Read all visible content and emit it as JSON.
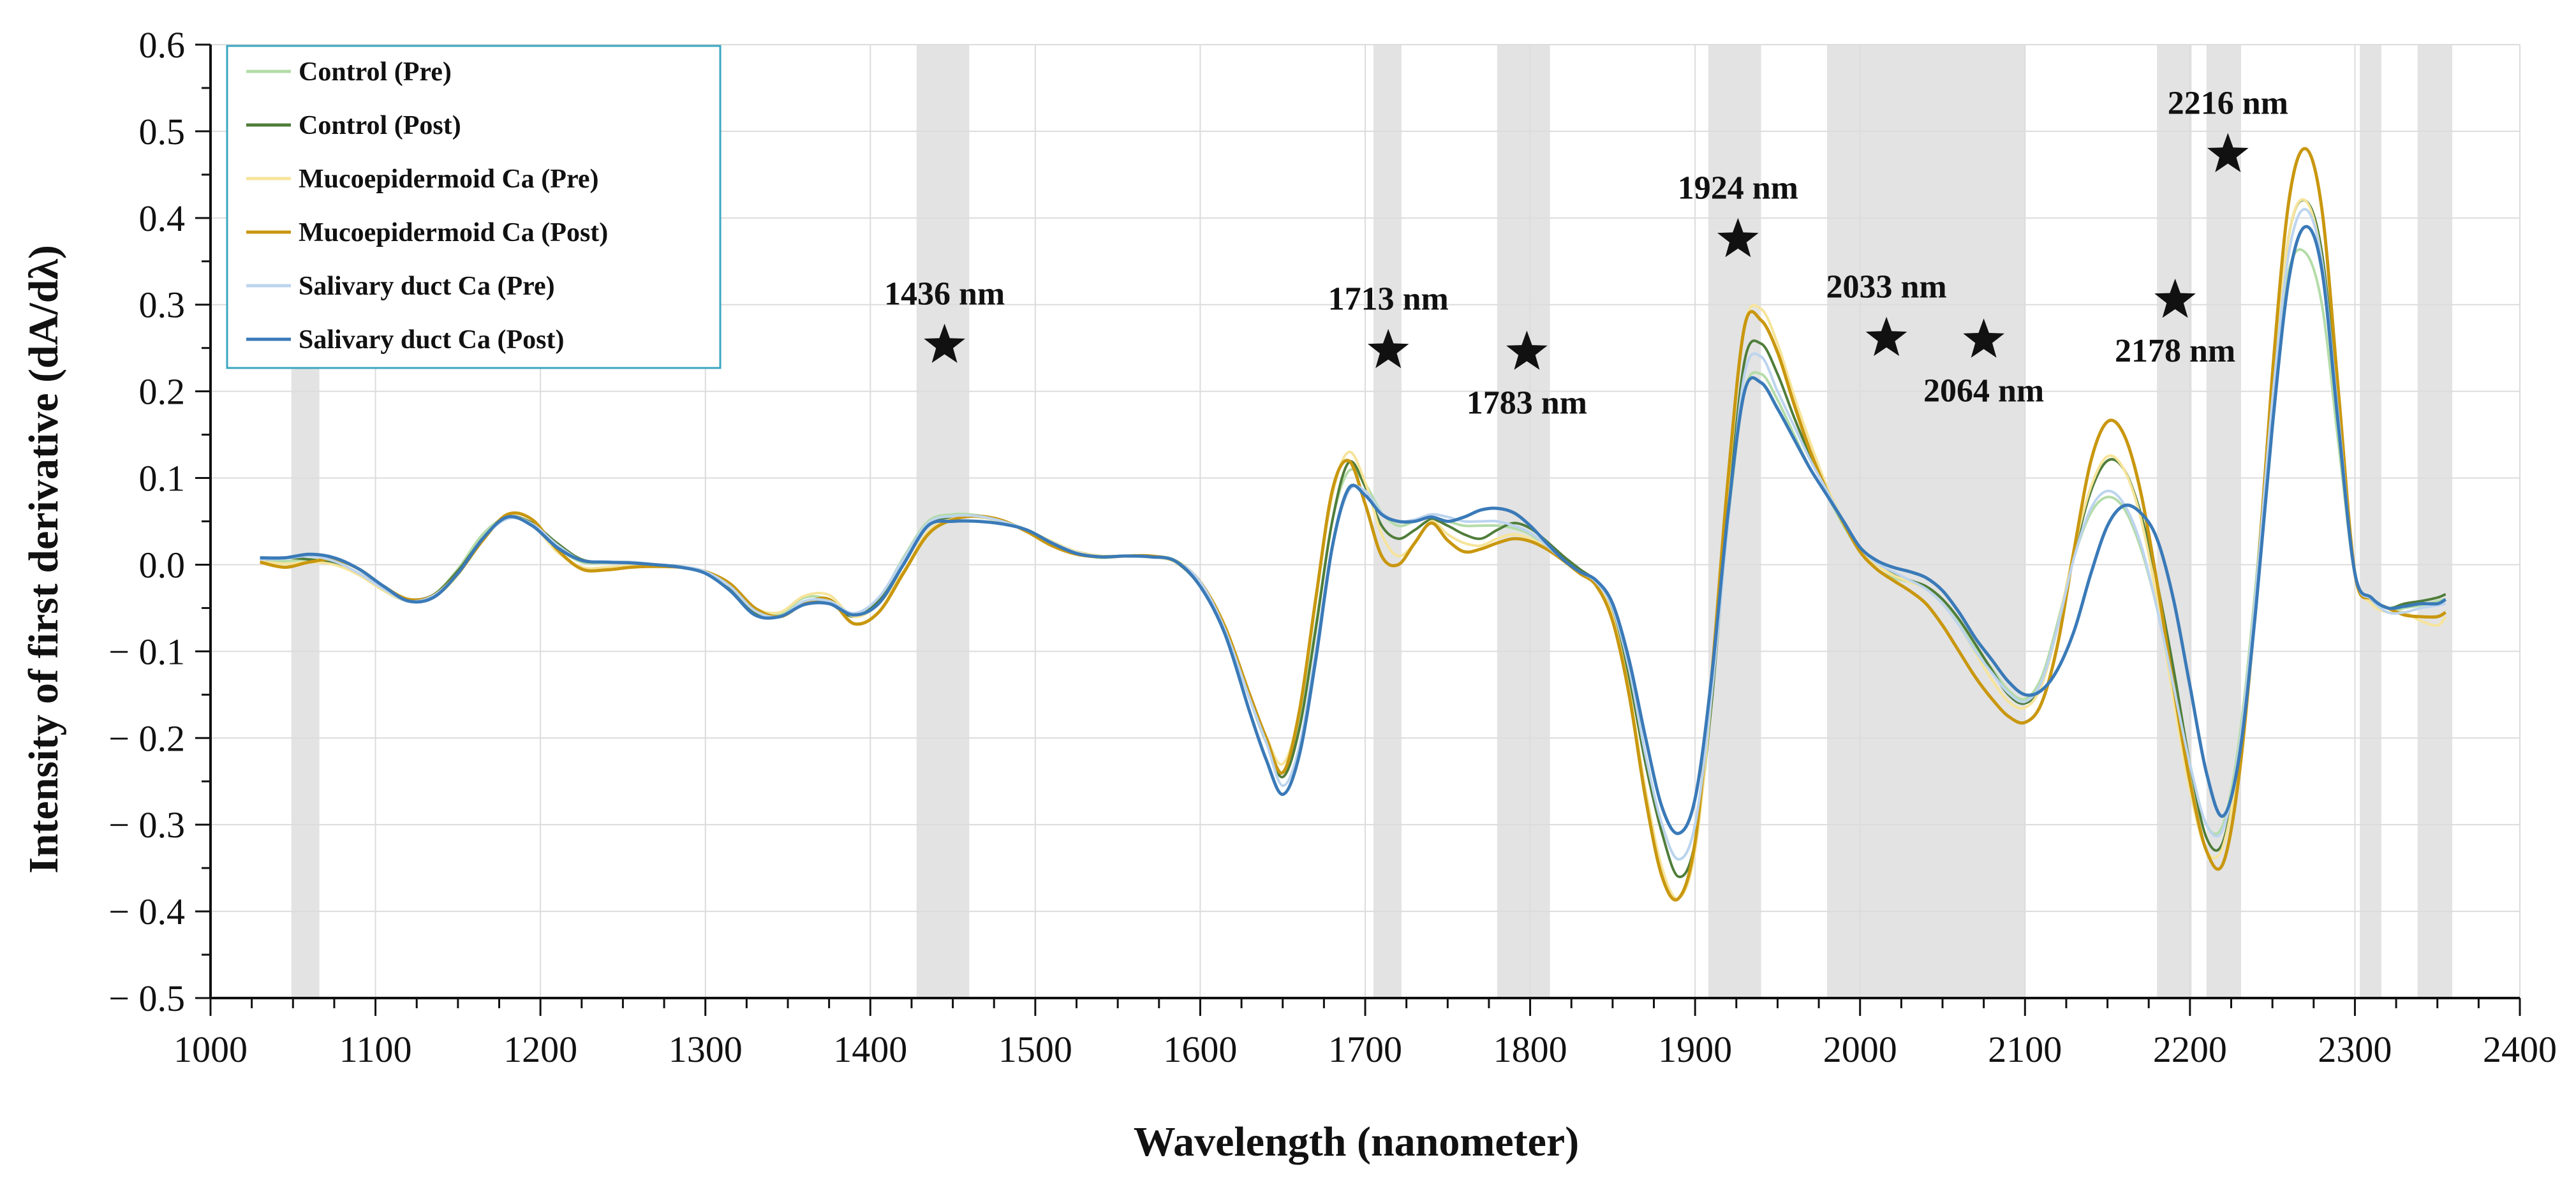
{
  "chart_data": {
    "type": "line",
    "title": "",
    "xlabel": "Wavelength (nanometer)",
    "ylabel": "Intensity of first derivative (dA/dλ)",
    "xlim": [
      1000,
      2400
    ],
    "ylim": [
      -0.5,
      0.6
    ],
    "xticks": [
      1000,
      1100,
      1200,
      1300,
      1400,
      1500,
      1600,
      1700,
      1800,
      1900,
      2000,
      2100,
      2200,
      2300,
      2400
    ],
    "yticks": [
      -0.5,
      -0.4,
      -0.3,
      -0.2,
      -0.1,
      0.0,
      0.1,
      0.2,
      0.3,
      0.4,
      0.5,
      0.6
    ],
    "ytick_labels": [
      "− 0.5",
      "− 0.4",
      "− 0.3",
      "− 0.2",
      "− 0.1",
      "0.0",
      "0.1",
      "0.2",
      "0.3",
      "0.4",
      "0.5",
      "0.6"
    ],
    "grid": true,
    "legend_position": "top-left",
    "shaded_regions": [
      [
        1049,
        1066
      ],
      [
        1428,
        1460
      ],
      [
        1705,
        1722
      ],
      [
        1780,
        1812
      ],
      [
        1908,
        1940
      ],
      [
        1980,
        2100
      ],
      [
        2180,
        2201
      ],
      [
        2210,
        2231
      ],
      [
        2303,
        2316
      ],
      [
        2338,
        2359
      ]
    ],
    "annotations": [
      {
        "label": "1436 nm",
        "x": 1445,
        "y": 0.256,
        "label_pos": "above"
      },
      {
        "label": "1713 nm",
        "x": 1714,
        "y": 0.25,
        "label_pos": "above"
      },
      {
        "label": "1783 nm",
        "x": 1798,
        "y": 0.248,
        "label_pos": "below"
      },
      {
        "label": "1924 nm",
        "x": 1926,
        "y": 0.378,
        "label_pos": "above"
      },
      {
        "label": "2033 nm",
        "x": 2016,
        "y": 0.264,
        "label_pos": "above"
      },
      {
        "label": "2064 nm",
        "x": 2075,
        "y": 0.262,
        "label_pos": "below"
      },
      {
        "label": "2178 nm",
        "x": 2191,
        "y": 0.308,
        "label_pos": "below"
      },
      {
        "label": "2216 nm",
        "x": 2223,
        "y": 0.476,
        "label_pos": "above"
      }
    ],
    "x": [
      1030,
      1045,
      1060,
      1075,
      1090,
      1105,
      1120,
      1135,
      1150,
      1165,
      1180,
      1195,
      1210,
      1225,
      1240,
      1255,
      1270,
      1285,
      1300,
      1315,
      1330,
      1345,
      1360,
      1375,
      1390,
      1405,
      1420,
      1435,
      1450,
      1465,
      1480,
      1495,
      1510,
      1525,
      1540,
      1555,
      1570,
      1585,
      1600,
      1615,
      1630,
      1640,
      1650,
      1660,
      1670,
      1680,
      1690,
      1700,
      1710,
      1720,
      1730,
      1740,
      1750,
      1760,
      1770,
      1780,
      1790,
      1800,
      1810,
      1820,
      1830,
      1840,
      1850,
      1860,
      1870,
      1880,
      1890,
      1900,
      1910,
      1920,
      1930,
      1940,
      1950,
      1960,
      1970,
      1980,
      1990,
      2000,
      2010,
      2020,
      2030,
      2040,
      2050,
      2060,
      2070,
      2080,
      2090,
      2100,
      2110,
      2120,
      2130,
      2140,
      2150,
      2160,
      2170,
      2180,
      2190,
      2200,
      2210,
      2220,
      2230,
      2240,
      2250,
      2260,
      2270,
      2280,
      2290,
      2300,
      2310,
      2320,
      2330,
      2340,
      2350,
      2355
    ],
    "series": [
      {
        "name": "Control (Pre)",
        "color": "#b4dca8",
        "width": 4,
        "values": [
          0.006,
          0.004,
          0.006,
          0.002,
          -0.01,
          -0.03,
          -0.042,
          -0.035,
          -0.005,
          0.035,
          0.055,
          0.045,
          0.02,
          0.003,
          0.002,
          0.002,
          0.0,
          -0.002,
          -0.008,
          -0.025,
          -0.052,
          -0.057,
          -0.038,
          -0.04,
          -0.058,
          -0.04,
          0.008,
          0.05,
          0.058,
          0.057,
          0.05,
          0.04,
          0.025,
          0.013,
          0.008,
          0.01,
          0.01,
          0.005,
          -0.02,
          -0.07,
          -0.15,
          -0.2,
          -0.24,
          -0.185,
          -0.07,
          0.05,
          0.108,
          0.093,
          0.06,
          0.045,
          0.05,
          0.055,
          0.05,
          0.045,
          0.045,
          0.045,
          0.042,
          0.035,
          0.02,
          0.005,
          -0.008,
          -0.02,
          -0.05,
          -0.12,
          -0.22,
          -0.3,
          -0.34,
          -0.3,
          -0.15,
          0.05,
          0.2,
          0.22,
          0.19,
          0.15,
          0.11,
          0.08,
          0.045,
          0.015,
          -0.005,
          -0.015,
          -0.02,
          -0.025,
          -0.04,
          -0.065,
          -0.095,
          -0.12,
          -0.145,
          -0.155,
          -0.13,
          -0.065,
          0.01,
          0.06,
          0.078,
          0.065,
          0.02,
          -0.05,
          -0.14,
          -0.23,
          -0.3,
          -0.3,
          -0.2,
          -0.02,
          0.2,
          0.34,
          0.36,
          0.3,
          0.14,
          -0.01,
          -0.04,
          -0.055,
          -0.05,
          -0.047,
          -0.042,
          -0.04
        ]
      },
      {
        "name": "Control (Post)",
        "color": "#4f7d3a",
        "width": 4,
        "values": [
          0.005,
          0.008,
          0.006,
          0.002,
          -0.01,
          -0.028,
          -0.04,
          -0.035,
          -0.007,
          0.03,
          0.055,
          0.048,
          0.025,
          0.006,
          0.003,
          0.003,
          0.0,
          -0.002,
          -0.01,
          -0.028,
          -0.055,
          -0.06,
          -0.045,
          -0.045,
          -0.06,
          -0.042,
          0.0,
          0.045,
          0.055,
          0.055,
          0.05,
          0.04,
          0.025,
          0.015,
          0.01,
          0.01,
          0.009,
          0.003,
          -0.025,
          -0.075,
          -0.155,
          -0.205,
          -0.245,
          -0.19,
          -0.075,
          0.05,
          0.118,
          0.09,
          0.045,
          0.03,
          0.04,
          0.052,
          0.045,
          0.035,
          0.03,
          0.04,
          0.048,
          0.042,
          0.027,
          0.01,
          -0.005,
          -0.02,
          -0.055,
          -0.13,
          -0.23,
          -0.31,
          -0.36,
          -0.32,
          -0.16,
          0.06,
          0.235,
          0.255,
          0.22,
          0.17,
          0.125,
          0.085,
          0.05,
          0.018,
          0.0,
          -0.01,
          -0.018,
          -0.025,
          -0.04,
          -0.063,
          -0.092,
          -0.122,
          -0.15,
          -0.16,
          -0.138,
          -0.07,
          0.015,
          0.085,
          0.12,
          0.11,
          0.06,
          -0.02,
          -0.12,
          -0.23,
          -0.315,
          -0.32,
          -0.215,
          -0.03,
          0.2,
          0.38,
          0.42,
          0.36,
          0.18,
          -0.01,
          -0.038,
          -0.05,
          -0.045,
          -0.042,
          -0.038,
          -0.034
        ]
      },
      {
        "name": "Mucoepidermoid Ca (Pre)",
        "color": "#f6e49a",
        "width": 4,
        "values": [
          0.004,
          0.001,
          0.003,
          0.0,
          -0.012,
          -0.03,
          -0.042,
          -0.038,
          -0.012,
          0.03,
          0.055,
          0.046,
          0.015,
          -0.003,
          -0.003,
          -0.001,
          -0.001,
          -0.003,
          -0.01,
          -0.025,
          -0.05,
          -0.055,
          -0.036,
          -0.035,
          -0.06,
          -0.045,
          -0.008,
          0.038,
          0.053,
          0.055,
          0.05,
          0.04,
          0.027,
          0.015,
          0.01,
          0.01,
          0.009,
          0.003,
          -0.02,
          -0.07,
          -0.15,
          -0.198,
          -0.23,
          -0.17,
          -0.04,
          0.08,
          0.13,
          0.095,
          0.035,
          0.01,
          0.025,
          0.05,
          0.035,
          0.025,
          0.022,
          0.03,
          0.035,
          0.03,
          0.02,
          0.005,
          -0.01,
          -0.022,
          -0.06,
          -0.145,
          -0.26,
          -0.35,
          -0.385,
          -0.33,
          -0.15,
          0.09,
          0.275,
          0.295,
          0.255,
          0.195,
          0.14,
          0.09,
          0.05,
          0.018,
          0.0,
          -0.012,
          -0.02,
          -0.028,
          -0.045,
          -0.07,
          -0.102,
          -0.133,
          -0.158,
          -0.165,
          -0.14,
          -0.07,
          0.02,
          0.09,
          0.125,
          0.11,
          0.055,
          -0.04,
          -0.155,
          -0.26,
          -0.33,
          -0.325,
          -0.22,
          -0.03,
          0.2,
          0.38,
          0.42,
          0.35,
          0.16,
          -0.01,
          -0.045,
          -0.055,
          -0.055,
          -0.065,
          -0.07,
          -0.06
        ]
      },
      {
        "name": "Mucoepidermoid Ca (Post)",
        "color": "#c9970f",
        "width": 5,
        "values": [
          0.003,
          -0.003,
          0.003,
          0.006,
          -0.005,
          -0.025,
          -0.04,
          -0.036,
          -0.01,
          0.028,
          0.058,
          0.052,
          0.018,
          -0.005,
          -0.006,
          -0.003,
          -0.002,
          -0.003,
          -0.008,
          -0.022,
          -0.05,
          -0.06,
          -0.045,
          -0.04,
          -0.068,
          -0.055,
          -0.01,
          0.035,
          0.052,
          0.056,
          0.051,
          0.038,
          0.022,
          0.012,
          0.009,
          0.01,
          0.01,
          0.004,
          -0.02,
          -0.072,
          -0.15,
          -0.2,
          -0.24,
          -0.17,
          -0.04,
          0.085,
          0.12,
          0.07,
          0.01,
          0.0,
          0.025,
          0.048,
          0.028,
          0.015,
          0.018,
          0.025,
          0.03,
          0.027,
          0.018,
          0.005,
          -0.01,
          -0.024,
          -0.065,
          -0.15,
          -0.27,
          -0.36,
          -0.385,
          -0.32,
          -0.13,
          0.1,
          0.275,
          0.282,
          0.245,
          0.185,
          0.13,
          0.085,
          0.048,
          0.015,
          -0.005,
          -0.018,
          -0.03,
          -0.045,
          -0.07,
          -0.1,
          -0.13,
          -0.155,
          -0.175,
          -0.182,
          -0.16,
          -0.09,
          0.02,
          0.12,
          0.165,
          0.15,
          0.085,
          -0.02,
          -0.14,
          -0.25,
          -0.33,
          -0.345,
          -0.24,
          -0.04,
          0.22,
          0.42,
          0.48,
          0.41,
          0.2,
          -0.01,
          -0.04,
          -0.05,
          -0.058,
          -0.06,
          -0.06,
          -0.055
        ]
      },
      {
        "name": "Salivary duct Ca (Pre)",
        "color": "#bcd4ee",
        "width": 4,
        "values": [
          0.006,
          0.007,
          0.01,
          0.004,
          -0.01,
          -0.028,
          -0.042,
          -0.036,
          -0.01,
          0.03,
          0.053,
          0.047,
          0.023,
          0.005,
          0.003,
          0.003,
          0.0,
          -0.002,
          -0.008,
          -0.025,
          -0.053,
          -0.06,
          -0.042,
          -0.042,
          -0.056,
          -0.038,
          0.006,
          0.048,
          0.056,
          0.056,
          0.05,
          0.04,
          0.026,
          0.014,
          0.009,
          0.01,
          0.009,
          0.004,
          -0.02,
          -0.075,
          -0.155,
          -0.205,
          -0.255,
          -0.21,
          -0.1,
          0.02,
          0.085,
          0.085,
          0.06,
          0.05,
          0.052,
          0.058,
          0.055,
          0.05,
          0.05,
          0.05,
          0.045,
          0.037,
          0.022,
          0.006,
          -0.008,
          -0.02,
          -0.05,
          -0.12,
          -0.22,
          -0.3,
          -0.34,
          -0.3,
          -0.15,
          0.05,
          0.22,
          0.24,
          0.2,
          0.16,
          0.12,
          0.085,
          0.05,
          0.02,
          0.002,
          -0.008,
          -0.018,
          -0.028,
          -0.045,
          -0.07,
          -0.1,
          -0.125,
          -0.148,
          -0.158,
          -0.135,
          -0.07,
          0.01,
          0.065,
          0.085,
          0.07,
          0.025,
          -0.05,
          -0.14,
          -0.23,
          -0.3,
          -0.305,
          -0.21,
          -0.03,
          0.19,
          0.36,
          0.41,
          0.35,
          0.17,
          -0.01,
          -0.04,
          -0.055,
          -0.055,
          -0.05,
          -0.047,
          -0.045
        ]
      },
      {
        "name": "Salivary duct Ca (Post)",
        "color": "#3a7ab8",
        "width": 5,
        "values": [
          0.008,
          0.008,
          0.012,
          0.008,
          -0.005,
          -0.025,
          -0.042,
          -0.038,
          -0.01,
          0.03,
          0.055,
          0.045,
          0.02,
          0.005,
          0.003,
          0.002,
          0.0,
          -0.003,
          -0.01,
          -0.03,
          -0.058,
          -0.06,
          -0.046,
          -0.045,
          -0.058,
          -0.045,
          0.0,
          0.045,
          0.05,
          0.05,
          0.047,
          0.04,
          0.025,
          0.013,
          0.009,
          0.01,
          0.009,
          0.004,
          -0.025,
          -0.08,
          -0.17,
          -0.225,
          -0.265,
          -0.22,
          -0.11,
          0.02,
          0.088,
          0.08,
          0.058,
          0.05,
          0.05,
          0.055,
          0.05,
          0.055,
          0.063,
          0.065,
          0.06,
          0.045,
          0.025,
          0.006,
          -0.008,
          -0.018,
          -0.045,
          -0.11,
          -0.2,
          -0.28,
          -0.31,
          -0.27,
          -0.13,
          0.06,
          0.2,
          0.21,
          0.18,
          0.145,
          0.11,
          0.08,
          0.05,
          0.02,
          0.005,
          -0.003,
          -0.008,
          -0.015,
          -0.03,
          -0.055,
          -0.085,
          -0.11,
          -0.135,
          -0.15,
          -0.145,
          -0.12,
          -0.075,
          -0.01,
          0.045,
          0.068,
          0.06,
          0.03,
          -0.04,
          -0.14,
          -0.24,
          -0.29,
          -0.22,
          -0.05,
          0.16,
          0.33,
          0.39,
          0.34,
          0.16,
          -0.01,
          -0.038,
          -0.05,
          -0.048,
          -0.045,
          -0.045,
          -0.04
        ]
      }
    ]
  }
}
